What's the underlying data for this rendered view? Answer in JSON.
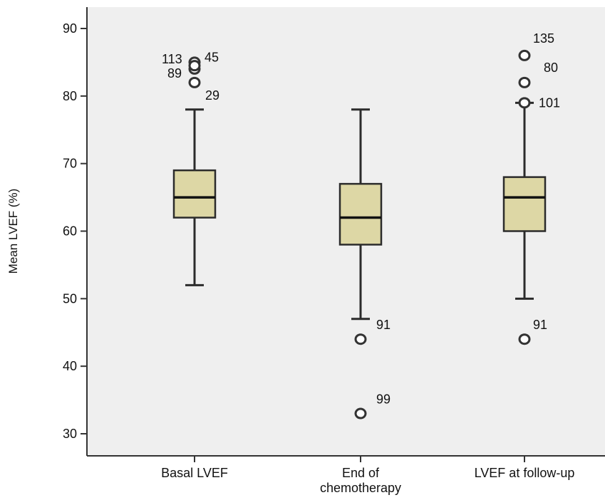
{
  "chart_data": {
    "type": "boxplot",
    "title": "",
    "xlabel": "",
    "ylabel": "Mean LVEF (%)",
    "ylim": [
      28,
      92
    ],
    "yticks": [
      30,
      40,
      50,
      60,
      70,
      80,
      90
    ],
    "ytick_labels": [
      "30",
      "40",
      "50",
      "60",
      "70",
      "80",
      "90"
    ],
    "categories": [
      "Basal LVEF",
      "End of chemotherapy",
      "LVEF at follow-up"
    ],
    "category_label_lines": [
      [
        "Basal LVEF"
      ],
      [
        "End of",
        "chemotherapy"
      ],
      [
        "LVEF at follow-up"
      ]
    ],
    "boxes": [
      {
        "category": "Basal LVEF",
        "whisker_low": 52,
        "q1": 62,
        "median": 65,
        "q3": 69,
        "whisker_high": 78,
        "outliers": [
          {
            "value": 85,
            "label": "45"
          },
          {
            "value": 84,
            "label": "113"
          },
          {
            "value": 84.5,
            "label": "89"
          },
          {
            "value": 82,
            "label": "29"
          }
        ]
      },
      {
        "category": "End of chemotherapy",
        "whisker_low": 47,
        "q1": 58,
        "median": 62,
        "q3": 67,
        "whisker_high": 78,
        "outliers": [
          {
            "value": 44,
            "label": "91"
          },
          {
            "value": 33,
            "label": "99"
          }
        ]
      },
      {
        "category": "LVEF at follow-up",
        "whisker_low": 50,
        "q1": 60,
        "median": 65,
        "q3": 68,
        "whisker_high": 79,
        "outliers": [
          {
            "value": 86,
            "label": "135"
          },
          {
            "value": 82,
            "label": "80"
          },
          {
            "value": 79,
            "label": "101"
          },
          {
            "value": 44,
            "label": "91"
          }
        ]
      }
    ],
    "colors": {
      "box_fill": "#ddd7a5",
      "box_stroke": "#2b2b2b",
      "plot_background": "#efefef",
      "axis": "#333333"
    },
    "grid": false,
    "legend": "none"
  }
}
